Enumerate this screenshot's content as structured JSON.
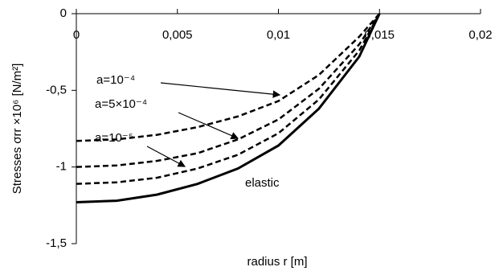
{
  "chart_data": {
    "type": "line",
    "x_label": "radius r [m]",
    "y_label": "Stresses  σrr ×10⁶ [N/m²]",
    "x": [
      0,
      0.002,
      0.004,
      0.006,
      0.008,
      0.01,
      0.012,
      0.014,
      0.015
    ],
    "series": [
      {
        "name": "a=10⁻⁴",
        "color": "#000000",
        "dashed": true,
        "values": [
          -0.83,
          -0.82,
          -0.79,
          -0.74,
          -0.67,
          -0.57,
          -0.4,
          -0.15,
          0
        ]
      },
      {
        "name": "a=5×10⁻⁴",
        "color": "#000000",
        "dashed": true,
        "values": [
          -1.0,
          -0.99,
          -0.96,
          -0.91,
          -0.82,
          -0.69,
          -0.49,
          -0.2,
          0
        ]
      },
      {
        "name": "a=10⁻⁵",
        "color": "#000000",
        "dashed": true,
        "values": [
          -1.11,
          -1.1,
          -1.07,
          -1.01,
          -0.92,
          -0.78,
          -0.56,
          -0.24,
          0
        ]
      },
      {
        "name": "elastic",
        "color": "#000000",
        "dashed": false,
        "values": [
          -1.23,
          -1.22,
          -1.18,
          -1.11,
          -1.01,
          -0.86,
          -0.62,
          -0.28,
          0
        ]
      }
    ],
    "xlim": [
      0,
      0.02
    ],
    "xticks": [
      0,
      {
        "value": 0.005,
        "label": "0,005"
      },
      {
        "value": 0.01,
        "label": "0,01"
      },
      {
        "value": 0.015,
        "label": "0,015"
      },
      {
        "value": 0.02,
        "label": "0,02"
      }
    ],
    "ylim": [
      -1.5,
      0
    ],
    "yticks": [
      0,
      {
        "value": -0.5,
        "label": "-0,5"
      },
      {
        "value": -1,
        "label": "-1"
      },
      {
        "value": -1.5,
        "label": "-1,5"
      }
    ],
    "grid": false
  }
}
